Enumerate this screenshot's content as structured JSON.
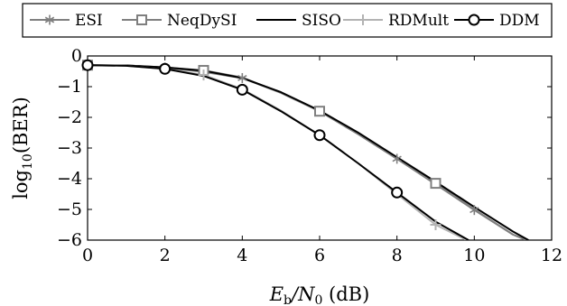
{
  "chart_data": {
    "type": "line",
    "xlabel_main": "E",
    "xlabel_sub": "b",
    "xlabel_mid": "/N",
    "xlabel_sub2": "0",
    "xlabel_unit": " (dB)",
    "ylabel_main": "log",
    "ylabel_sub": "10",
    "ylabel_rest": "(BER)",
    "xlim": [
      0,
      12
    ],
    "ylim": [
      -6,
      0
    ],
    "xticks": [
      "0",
      "2",
      "4",
      "6",
      "8",
      "10",
      "12"
    ],
    "yticks": [
      "0",
      "−1",
      "−2",
      "−3",
      "−4",
      "−5",
      "−6"
    ],
    "legend_position": "top",
    "series": [
      {
        "name": "ESI",
        "color": "#7f7f7f",
        "marker": "star",
        "points": [
          [
            0,
            -0.3
          ],
          [
            2,
            -0.38
          ],
          [
            4,
            -0.72
          ],
          [
            8,
            -3.35
          ],
          [
            10,
            -5.02
          ]
        ],
        "line": [
          [
            0,
            -0.3
          ],
          [
            1,
            -0.31
          ],
          [
            2,
            -0.38
          ],
          [
            3,
            -0.52
          ],
          [
            4,
            -0.72
          ],
          [
            5,
            -1.2
          ],
          [
            6,
            -1.8
          ],
          [
            7,
            -2.55
          ],
          [
            8,
            -3.35
          ],
          [
            9,
            -4.18
          ],
          [
            10,
            -5.02
          ],
          [
            11,
            -5.82
          ],
          [
            11.35,
            -6.0
          ]
        ]
      },
      {
        "name": "NeqDySI",
        "color": "#7f7f7f",
        "marker": "square",
        "points": [
          [
            0,
            -0.3
          ],
          [
            3,
            -0.47
          ],
          [
            6,
            -1.8
          ],
          [
            9,
            -4.15
          ]
        ],
        "line": [
          [
            0,
            -0.3
          ],
          [
            1,
            -0.31
          ],
          [
            2,
            -0.37
          ],
          [
            3,
            -0.47
          ],
          [
            4,
            -0.7
          ],
          [
            5,
            -1.2
          ],
          [
            6,
            -1.8
          ],
          [
            7,
            -2.55
          ],
          [
            8,
            -3.35
          ],
          [
            9,
            -4.15
          ],
          [
            10,
            -5.0
          ],
          [
            11,
            -5.82
          ],
          [
            11.35,
            -6.0
          ]
        ]
      },
      {
        "name": "SISO",
        "color": "#000000",
        "marker": "none",
        "points": [],
        "line": [
          [
            0,
            -0.3
          ],
          [
            1,
            -0.31
          ],
          [
            2,
            -0.37
          ],
          [
            3,
            -0.48
          ],
          [
            4,
            -0.72
          ],
          [
            5,
            -1.18
          ],
          [
            6,
            -1.78
          ],
          [
            7,
            -2.5
          ],
          [
            8,
            -3.3
          ],
          [
            9,
            -4.1
          ],
          [
            10,
            -4.92
          ],
          [
            11,
            -5.72
          ],
          [
            11.4,
            -6.0
          ]
        ]
      },
      {
        "name": "RDMult",
        "color": "#b3b3b3",
        "marker": "plus",
        "points": [
          [
            0,
            -0.3
          ],
          [
            3,
            -0.62
          ],
          [
            9,
            -5.5
          ]
        ],
        "line": [
          [
            0,
            -0.3
          ],
          [
            1,
            -0.32
          ],
          [
            2,
            -0.42
          ],
          [
            3,
            -0.62
          ],
          [
            4,
            -1.08
          ],
          [
            5,
            -1.78
          ],
          [
            6,
            -2.58
          ],
          [
            7,
            -3.5
          ],
          [
            8,
            -4.5
          ],
          [
            9,
            -5.5
          ],
          [
            9.8,
            -6.0
          ]
        ]
      },
      {
        "name": "DDM",
        "color": "#000000",
        "marker": "circle",
        "points": [
          [
            0,
            -0.3
          ],
          [
            2,
            -0.42
          ],
          [
            4,
            -1.1
          ],
          [
            6,
            -2.58
          ],
          [
            8,
            -4.45
          ]
        ],
        "line": [
          [
            0,
            -0.3
          ],
          [
            1,
            -0.32
          ],
          [
            2,
            -0.42
          ],
          [
            3,
            -0.65
          ],
          [
            4,
            -1.1
          ],
          [
            5,
            -1.8
          ],
          [
            6,
            -2.58
          ],
          [
            7,
            -3.5
          ],
          [
            8,
            -4.45
          ],
          [
            9,
            -5.4
          ],
          [
            9.85,
            -6.0
          ]
        ]
      }
    ]
  }
}
